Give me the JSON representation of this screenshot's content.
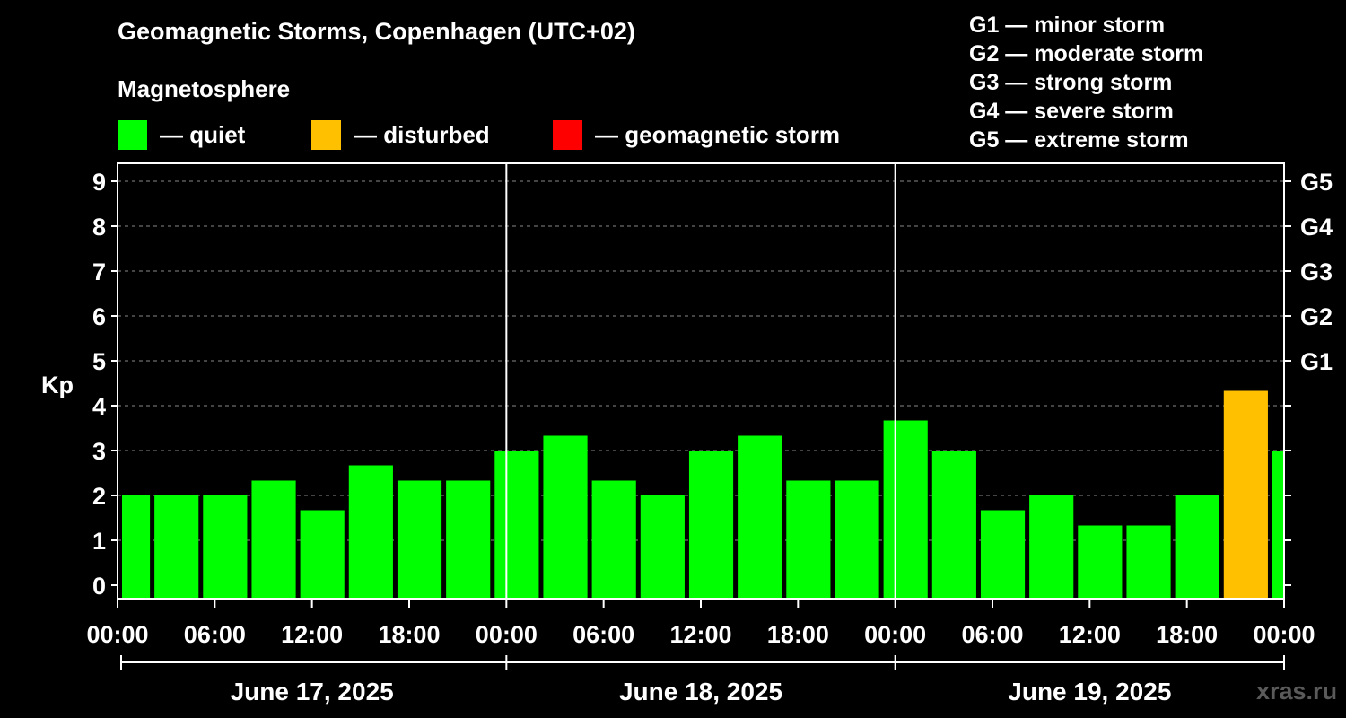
{
  "title": "Geomagnetic Storms, Copenhagen (UTC+02)",
  "subtitle": "Magnetosphere",
  "legend": [
    {
      "label": "— quiet",
      "color": "#00ff00"
    },
    {
      "label": "— disturbed",
      "color": "#ffc000"
    },
    {
      "label": "— geomagnetic storm",
      "color": "#ff0000"
    }
  ],
  "storm_scale": [
    "G1 — minor storm",
    "G2 — moderate storm",
    "G3 — strong storm",
    "G4 — severe storm",
    "G5 — extreme storm"
  ],
  "watermark": "xras.ru",
  "chart_data": {
    "type": "bar",
    "title": "Geomagnetic Storms, Copenhagen (UTC+02)",
    "ylabel": "Kp",
    "ylim": [
      0,
      9
    ],
    "yticks": [
      "0",
      "1",
      "2",
      "3",
      "4",
      "5",
      "6",
      "7",
      "8",
      "9"
    ],
    "right_ticks": [
      {
        "kp": 5,
        "label": "G1"
      },
      {
        "kp": 6,
        "label": "G2"
      },
      {
        "kp": 7,
        "label": "G3"
      },
      {
        "kp": 8,
        "label": "G4"
      },
      {
        "kp": 9,
        "label": "G5"
      }
    ],
    "x_range_hours": [
      0,
      72
    ],
    "x_tick_hours": [
      0,
      6,
      12,
      18,
      24,
      30,
      36,
      42,
      48,
      54,
      60,
      66,
      72
    ],
    "x_tick_labels": [
      "00:00",
      "06:00",
      "12:00",
      "18:00",
      "00:00",
      "06:00",
      "12:00",
      "18:00",
      "00:00",
      "06:00",
      "12:00",
      "18:00",
      "00:00"
    ],
    "day_boundary_hours": [
      24,
      48
    ],
    "dates": [
      "June 17, 2025",
      "June 18, 2025",
      "June 19, 2025"
    ],
    "bars": [
      {
        "start_hour": 0,
        "end_hour": 2,
        "kp": 2.0,
        "status": "quiet"
      },
      {
        "start_hour": 2,
        "end_hour": 5,
        "kp": 2.0,
        "status": "quiet"
      },
      {
        "start_hour": 5,
        "end_hour": 8,
        "kp": 2.0,
        "status": "quiet"
      },
      {
        "start_hour": 8,
        "end_hour": 11,
        "kp": 2.33,
        "status": "quiet"
      },
      {
        "start_hour": 11,
        "end_hour": 14,
        "kp": 1.67,
        "status": "quiet"
      },
      {
        "start_hour": 14,
        "end_hour": 17,
        "kp": 2.67,
        "status": "quiet"
      },
      {
        "start_hour": 17,
        "end_hour": 20,
        "kp": 2.33,
        "status": "quiet"
      },
      {
        "start_hour": 20,
        "end_hour": 23,
        "kp": 2.33,
        "status": "quiet"
      },
      {
        "start_hour": 23,
        "end_hour": 26,
        "kp": 3.0,
        "status": "quiet"
      },
      {
        "start_hour": 26,
        "end_hour": 29,
        "kp": 3.33,
        "status": "quiet"
      },
      {
        "start_hour": 29,
        "end_hour": 32,
        "kp": 2.33,
        "status": "quiet"
      },
      {
        "start_hour": 32,
        "end_hour": 35,
        "kp": 2.0,
        "status": "quiet"
      },
      {
        "start_hour": 35,
        "end_hour": 38,
        "kp": 3.0,
        "status": "quiet"
      },
      {
        "start_hour": 38,
        "end_hour": 41,
        "kp": 3.33,
        "status": "quiet"
      },
      {
        "start_hour": 41,
        "end_hour": 44,
        "kp": 2.33,
        "status": "quiet"
      },
      {
        "start_hour": 44,
        "end_hour": 47,
        "kp": 2.33,
        "status": "quiet"
      },
      {
        "start_hour": 47,
        "end_hour": 50,
        "kp": 3.67,
        "status": "quiet"
      },
      {
        "start_hour": 50,
        "end_hour": 53,
        "kp": 3.0,
        "status": "quiet"
      },
      {
        "start_hour": 53,
        "end_hour": 56,
        "kp": 1.67,
        "status": "quiet"
      },
      {
        "start_hour": 56,
        "end_hour": 59,
        "kp": 2.0,
        "status": "quiet"
      },
      {
        "start_hour": 59,
        "end_hour": 62,
        "kp": 1.33,
        "status": "quiet"
      },
      {
        "start_hour": 62,
        "end_hour": 65,
        "kp": 1.33,
        "status": "quiet"
      },
      {
        "start_hour": 65,
        "end_hour": 68,
        "kp": 2.0,
        "status": "quiet"
      },
      {
        "start_hour": 68,
        "end_hour": 71,
        "kp": 4.33,
        "status": "disturbed"
      },
      {
        "start_hour": 71,
        "end_hour": 72,
        "kp": 3.0,
        "status": "quiet"
      }
    ],
    "status_colors": {
      "quiet": "#00ff00",
      "disturbed": "#ffc000",
      "storm": "#ff0000"
    }
  }
}
